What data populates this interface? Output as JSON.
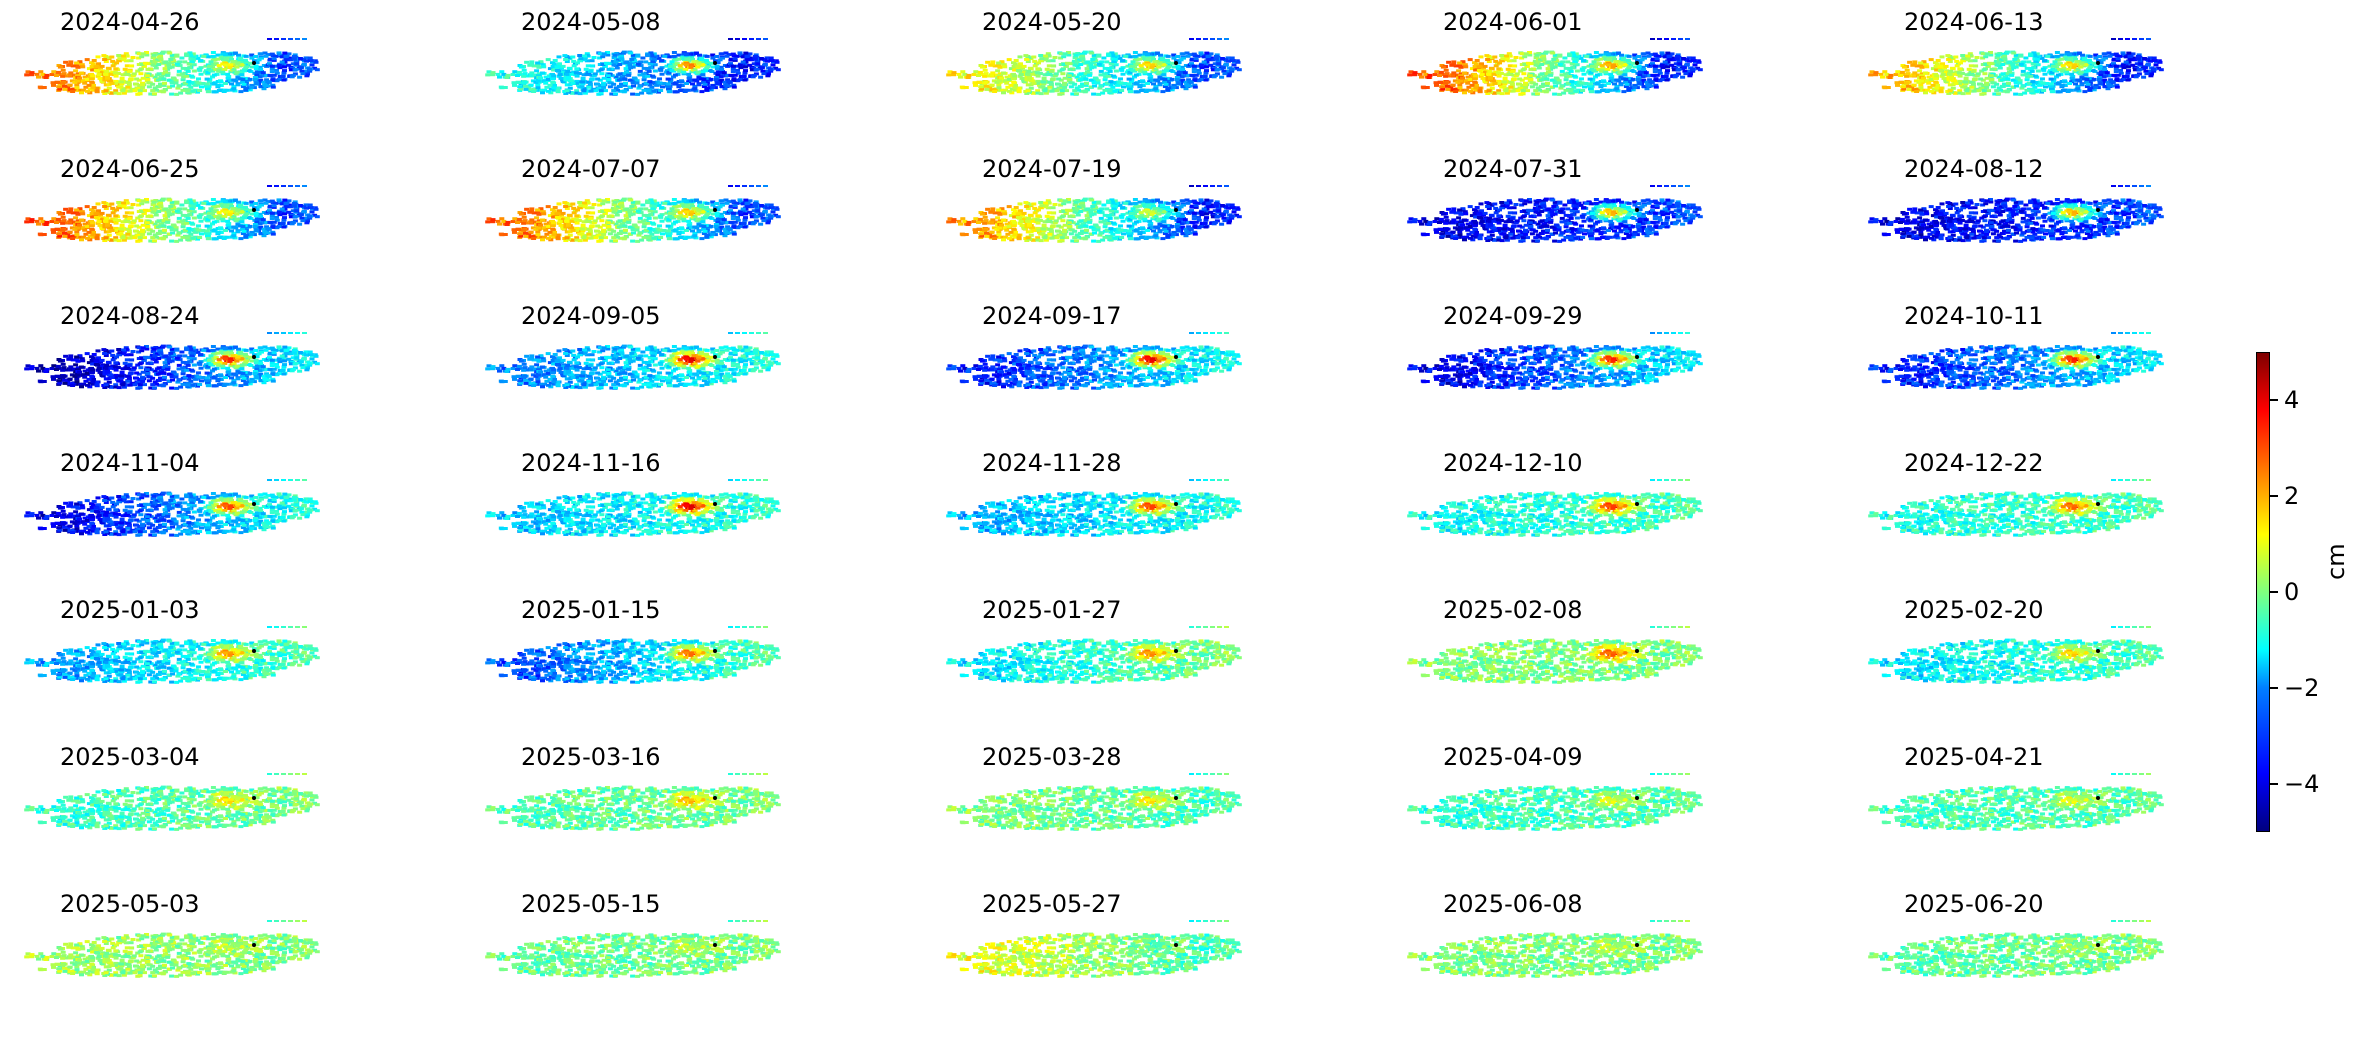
{
  "chart_data": {
    "type": "heatmap",
    "title": "",
    "layout": {
      "rows": 7,
      "cols": 5
    },
    "panels": [
      "2024-04-26",
      "2024-05-08",
      "2024-05-20",
      "2024-06-01",
      "2024-06-13",
      "2024-06-25",
      "2024-07-07",
      "2024-07-19",
      "2024-07-31",
      "2024-08-12",
      "2024-08-24",
      "2024-09-05",
      "2024-09-17",
      "2024-09-29",
      "2024-10-11",
      "2024-11-04",
      "2024-11-16",
      "2024-11-28",
      "2024-12-10",
      "2024-12-22",
      "2025-01-03",
      "2025-01-15",
      "2025-01-27",
      "2025-02-08",
      "2025-02-20",
      "2025-03-04",
      "2025-03-16",
      "2025-03-28",
      "2025-04-09",
      "2025-04-21",
      "2025-05-03",
      "2025-05-15",
      "2025-05-27",
      "2025-06-08",
      "2025-06-20"
    ],
    "panel_values": {
      "west": [
        2.5,
        -1.0,
        1.2,
        2.8,
        1.8,
        2.8,
        2.6,
        2.2,
        -4.0,
        -4.0,
        -4.5,
        -2.5,
        -3.5,
        -4.0,
        -3.5,
        -4.0,
        -1.8,
        -2.0,
        -1.2,
        -1.0,
        -2.2,
        -3.0,
        -1.5,
        0.0,
        -1.5,
        -0.8,
        -0.5,
        0.0,
        -0.8,
        -0.6,
        0.3,
        -0.3,
        1.0,
        0.0,
        -0.4
      ],
      "east": [
        -3.0,
        -3.5,
        -3.0,
        -3.5,
        -3.5,
        -3.0,
        -3.0,
        -3.5,
        -3.0,
        -3.0,
        -1.5,
        -1.0,
        -1.2,
        -1.5,
        -1.5,
        -1.0,
        -0.8,
        -1.0,
        -0.5,
        -0.5,
        -0.5,
        -0.5,
        0.0,
        0.0,
        -0.5,
        0.0,
        0.0,
        -0.5,
        -0.3,
        -0.3,
        0.0,
        0.0,
        -0.5,
        0.0,
        0.0
      ],
      "hotspot": [
        1.5,
        3.0,
        2.0,
        2.5,
        2.0,
        1.5,
        2.0,
        1.0,
        2.5,
        2.5,
        4.0,
        4.5,
        4.5,
        4.0,
        4.0,
        3.5,
        4.5,
        3.5,
        3.5,
        3.0,
        2.5,
        3.0,
        2.5,
        3.0,
        1.8,
        1.5,
        2.0,
        1.5,
        1.0,
        1.0,
        0.5,
        0.5,
        -0.5,
        0.5,
        0.2
      ]
    },
    "colorbar": {
      "label": "cm",
      "range": [
        -5,
        5
      ],
      "ticks": [
        -4,
        -2,
        0,
        2,
        4
      ],
      "tick_labels": [
        "−4",
        "−2",
        "0",
        "2",
        "4"
      ],
      "colormap": "jet"
    }
  }
}
